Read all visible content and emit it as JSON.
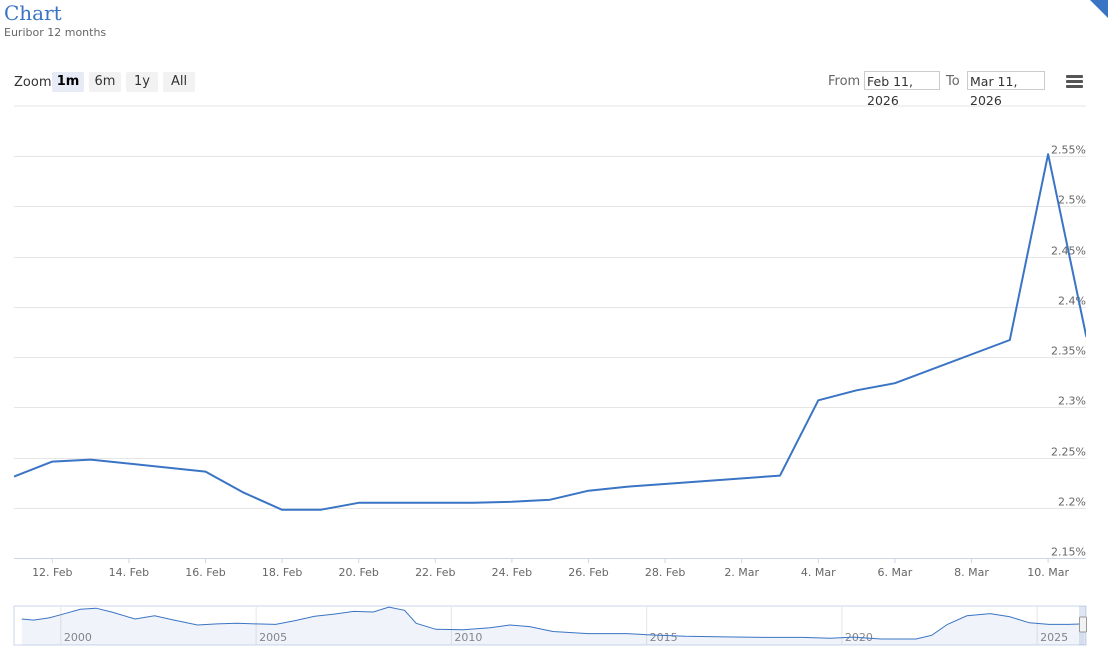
{
  "header": {
    "title": "Chart",
    "subtitle": "Euribor 12 months"
  },
  "toolbar": {
    "zoom_label": "Zoom",
    "zoom_buttons": [
      "1m",
      "6m",
      "1y",
      "All"
    ],
    "active_zoom": "1m",
    "from_label": "From",
    "from_value": "Feb 11, 2026",
    "to_label": "To",
    "to_value": "Mar 11, 2026"
  },
  "colors": {
    "series": "#3a74c4",
    "grid": "#e6e6e6",
    "title": "#3a74c4"
  },
  "chart_data": {
    "type": "line",
    "title": "Chart",
    "subtitle": "Euribor 12 months",
    "x_tick_labels": [
      "12. Feb",
      "14. Feb",
      "16. Feb",
      "18. Feb",
      "20. Feb",
      "22. Feb",
      "24. Feb",
      "26. Feb",
      "28. Feb",
      "2. Mar",
      "4. Mar",
      "6. Mar",
      "8. Mar",
      "10. Mar"
    ],
    "y_tick_labels": [
      "2.15%",
      "2.2%",
      "2.25%",
      "2.3%",
      "2.35%",
      "2.4%",
      "2.45%",
      "2.5%",
      "2.55%"
    ],
    "ylim": [
      2.15,
      2.6
    ],
    "y_axis_position": "right",
    "grid": true,
    "series": [
      {
        "values": [
          {
            "x": "2026-02-11",
            "y": 2.231
          },
          {
            "x": "2026-02-12",
            "y": 2.246
          },
          {
            "x": "2026-02-13",
            "y": 2.248
          },
          {
            "x": "2026-02-16",
            "y": 2.236
          },
          {
            "x": "2026-02-17",
            "y": 2.215
          },
          {
            "x": "2026-02-18",
            "y": 2.198
          },
          {
            "x": "2026-02-19",
            "y": 2.198
          },
          {
            "x": "2026-02-20",
            "y": 2.205
          },
          {
            "x": "2026-02-23",
            "y": 2.205
          },
          {
            "x": "2026-02-24",
            "y": 2.206
          },
          {
            "x": "2026-02-25",
            "y": 2.208
          },
          {
            "x": "2026-02-26",
            "y": 2.217
          },
          {
            "x": "2026-02-27",
            "y": 2.221
          },
          {
            "x": "2026-03-03",
            "y": 2.232
          },
          {
            "x": "2026-03-04",
            "y": 2.307
          },
          {
            "x": "2026-03-05",
            "y": 2.317
          },
          {
            "x": "2026-03-06",
            "y": 2.324
          },
          {
            "x": "2026-03-09",
            "y": 2.367
          },
          {
            "x": "2026-03-10",
            "y": 2.552
          },
          {
            "x": "2026-03-11",
            "y": 2.37
          }
        ]
      }
    ],
    "navigator": {
      "x_tick_labels": [
        "2000",
        "2005",
        "2010",
        "2015",
        "2020",
        "2025"
      ],
      "values": [
        {
          "x": 1999.0,
          "y": 3.2
        },
        {
          "x": 1999.3,
          "y": 3.0
        },
        {
          "x": 1999.7,
          "y": 3.4
        },
        {
          "x": 2000.0,
          "y": 4.0
        },
        {
          "x": 2000.5,
          "y": 5.0
        },
        {
          "x": 2000.9,
          "y": 5.2
        },
        {
          "x": 2001.3,
          "y": 4.5
        },
        {
          "x": 2001.9,
          "y": 3.2
        },
        {
          "x": 2002.4,
          "y": 3.8
        },
        {
          "x": 2002.9,
          "y": 3.0
        },
        {
          "x": 2003.5,
          "y": 2.1
        },
        {
          "x": 2004.0,
          "y": 2.3
        },
        {
          "x": 2004.5,
          "y": 2.4
        },
        {
          "x": 2005.0,
          "y": 2.3
        },
        {
          "x": 2005.5,
          "y": 2.2
        },
        {
          "x": 2006.0,
          "y": 2.9
        },
        {
          "x": 2006.5,
          "y": 3.7
        },
        {
          "x": 2007.0,
          "y": 4.1
        },
        {
          "x": 2007.5,
          "y": 4.6
        },
        {
          "x": 2008.0,
          "y": 4.5
        },
        {
          "x": 2008.4,
          "y": 5.4
        },
        {
          "x": 2008.8,
          "y": 4.8
        },
        {
          "x": 2009.1,
          "y": 2.4
        },
        {
          "x": 2009.6,
          "y": 1.3
        },
        {
          "x": 2010.3,
          "y": 1.2
        },
        {
          "x": 2011.0,
          "y": 1.6
        },
        {
          "x": 2011.5,
          "y": 2.1
        },
        {
          "x": 2012.0,
          "y": 1.8
        },
        {
          "x": 2012.6,
          "y": 0.9
        },
        {
          "x": 2013.5,
          "y": 0.5
        },
        {
          "x": 2014.5,
          "y": 0.5
        },
        {
          "x": 2015.0,
          "y": 0.3
        },
        {
          "x": 2016.0,
          "y": 0.0
        },
        {
          "x": 2017.0,
          "y": -0.1
        },
        {
          "x": 2018.0,
          "y": -0.2
        },
        {
          "x": 2019.0,
          "y": -0.2
        },
        {
          "x": 2019.7,
          "y": -0.35
        },
        {
          "x": 2020.3,
          "y": -0.15
        },
        {
          "x": 2021.0,
          "y": -0.5
        },
        {
          "x": 2021.9,
          "y": -0.5
        },
        {
          "x": 2022.3,
          "y": 0.2
        },
        {
          "x": 2022.7,
          "y": 2.2
        },
        {
          "x": 2023.2,
          "y": 3.8
        },
        {
          "x": 2023.8,
          "y": 4.2
        },
        {
          "x": 2024.3,
          "y": 3.6
        },
        {
          "x": 2024.8,
          "y": 2.5
        },
        {
          "x": 2025.3,
          "y": 2.2
        },
        {
          "x": 2025.8,
          "y": 2.2
        },
        {
          "x": 2026.2,
          "y": 2.3
        }
      ]
    }
  }
}
